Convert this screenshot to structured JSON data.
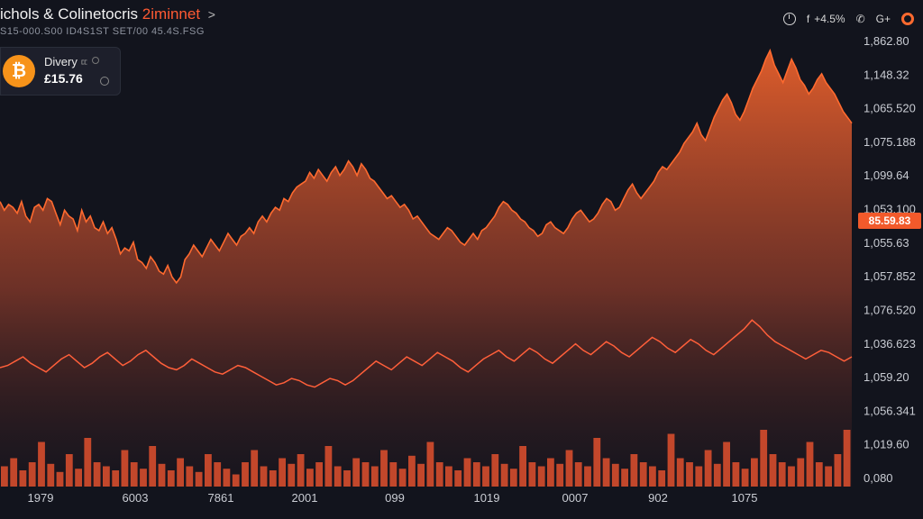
{
  "header": {
    "title_main": "ichols & Colinetocris",
    "title_accent": "2iminnet",
    "title_caret": ">",
    "subtitle": "S15-000.S00 ID4S1ST SET/00 45.4S.FSG"
  },
  "toolbar": {
    "timer_icon": "clock-icon",
    "social_icon_label": "f",
    "change": "+4.5%",
    "phone_icon_label": "✆",
    "share_icon_label": "G+",
    "record_icon": "ring-icon"
  },
  "ticker": {
    "name": "Divery",
    "name_suffix": "ㄸ",
    "price": "£15.76",
    "coin_symbol": "₿"
  },
  "colors": {
    "background": "#12141d",
    "price_line": "#ff6a2f",
    "area_top": "#e8602c",
    "area_bottom": "#2a1a22",
    "secondary_line": "#ff5f3a",
    "volume": "#e0502e",
    "badge": "#f25a2b"
  },
  "chart_data": {
    "type": "area",
    "y_axis_labels": [
      "1,862.80",
      "1,148.32",
      "1,065.520",
      "1,075.188",
      "1,099.64",
      "1,053.100",
      "1,055.63",
      "1,057.852",
      "1,076.520",
      "1,036.623",
      "1,059.20",
      "1,056.341",
      "1,019.60",
      "0,080"
    ],
    "x_axis_labels": [
      "1979",
      "6003",
      "7861",
      "2001",
      "099",
      "1019",
      "0007",
      "902",
      "1075"
    ],
    "current_price_badge": "85.59.83",
    "price_series": [
      0.73,
      0.7,
      0.72,
      0.71,
      0.69,
      0.73,
      0.68,
      0.66,
      0.71,
      0.72,
      0.7,
      0.74,
      0.73,
      0.69,
      0.65,
      0.7,
      0.68,
      0.67,
      0.63,
      0.7,
      0.66,
      0.68,
      0.64,
      0.63,
      0.66,
      0.62,
      0.64,
      0.6,
      0.55,
      0.57,
      0.56,
      0.59,
      0.53,
      0.52,
      0.5,
      0.54,
      0.52,
      0.49,
      0.48,
      0.51,
      0.47,
      0.45,
      0.47,
      0.53,
      0.55,
      0.58,
      0.56,
      0.54,
      0.57,
      0.6,
      0.58,
      0.56,
      0.59,
      0.62,
      0.6,
      0.58,
      0.61,
      0.62,
      0.64,
      0.62,
      0.66,
      0.68,
      0.66,
      0.69,
      0.71,
      0.7,
      0.74,
      0.73,
      0.76,
      0.78,
      0.79,
      0.8,
      0.83,
      0.81,
      0.84,
      0.82,
      0.8,
      0.83,
      0.85,
      0.82,
      0.84,
      0.87,
      0.85,
      0.82,
      0.86,
      0.84,
      0.81,
      0.8,
      0.78,
      0.76,
      0.74,
      0.75,
      0.73,
      0.71,
      0.72,
      0.7,
      0.67,
      0.68,
      0.66,
      0.64,
      0.62,
      0.61,
      0.6,
      0.62,
      0.64,
      0.63,
      0.61,
      0.59,
      0.58,
      0.6,
      0.62,
      0.6,
      0.63,
      0.64,
      0.66,
      0.68,
      0.71,
      0.73,
      0.72,
      0.7,
      0.69,
      0.67,
      0.66,
      0.64,
      0.63,
      0.61,
      0.62,
      0.65,
      0.66,
      0.64,
      0.63,
      0.62,
      0.64,
      0.67,
      0.69,
      0.7,
      0.68,
      0.66,
      0.67,
      0.69,
      0.72,
      0.74,
      0.73,
      0.7,
      0.71,
      0.74,
      0.77,
      0.79,
      0.76,
      0.74,
      0.76,
      0.78,
      0.8,
      0.83,
      0.85,
      0.84,
      0.86,
      0.88,
      0.9,
      0.93,
      0.95,
      0.97,
      1.0,
      0.96,
      0.94,
      0.98,
      1.02,
      1.05,
      1.08,
      1.1,
      1.07,
      1.03,
      1.01,
      1.04,
      1.08,
      1.12,
      1.15,
      1.18,
      1.22,
      1.25,
      1.2,
      1.17,
      1.14,
      1.18,
      1.22,
      1.19,
      1.15,
      1.13,
      1.1,
      1.12,
      1.15,
      1.17,
      1.14,
      1.12,
      1.1,
      1.07,
      1.04,
      1.02,
      1.0
    ],
    "momentum_series": [
      0.3,
      0.31,
      0.33,
      0.35,
      0.32,
      0.3,
      0.28,
      0.31,
      0.34,
      0.36,
      0.33,
      0.3,
      0.32,
      0.35,
      0.37,
      0.34,
      0.31,
      0.33,
      0.36,
      0.38,
      0.35,
      0.32,
      0.3,
      0.29,
      0.31,
      0.34,
      0.32,
      0.3,
      0.28,
      0.27,
      0.29,
      0.31,
      0.3,
      0.28,
      0.26,
      0.24,
      0.22,
      0.23,
      0.25,
      0.24,
      0.22,
      0.21,
      0.23,
      0.25,
      0.24,
      0.22,
      0.24,
      0.27,
      0.3,
      0.33,
      0.31,
      0.29,
      0.32,
      0.35,
      0.33,
      0.31,
      0.34,
      0.37,
      0.35,
      0.33,
      0.3,
      0.28,
      0.31,
      0.34,
      0.36,
      0.38,
      0.35,
      0.33,
      0.36,
      0.39,
      0.37,
      0.34,
      0.32,
      0.35,
      0.38,
      0.41,
      0.38,
      0.36,
      0.39,
      0.42,
      0.4,
      0.37,
      0.35,
      0.38,
      0.41,
      0.44,
      0.42,
      0.39,
      0.37,
      0.4,
      0.43,
      0.41,
      0.38,
      0.36,
      0.39,
      0.42,
      0.45,
      0.48,
      0.52,
      0.49,
      0.45,
      0.42,
      0.4,
      0.38,
      0.36,
      0.34,
      0.36,
      0.38,
      0.37,
      0.35,
      0.33,
      0.35
    ],
    "volume_series": [
      0.25,
      0.35,
      0.2,
      0.3,
      0.55,
      0.28,
      0.18,
      0.4,
      0.22,
      0.6,
      0.3,
      0.25,
      0.2,
      0.45,
      0.3,
      0.22,
      0.5,
      0.28,
      0.2,
      0.35,
      0.25,
      0.18,
      0.4,
      0.3,
      0.22,
      0.15,
      0.3,
      0.45,
      0.25,
      0.2,
      0.35,
      0.28,
      0.4,
      0.22,
      0.3,
      0.5,
      0.25,
      0.2,
      0.35,
      0.3,
      0.25,
      0.45,
      0.3,
      0.22,
      0.38,
      0.28,
      0.55,
      0.3,
      0.25,
      0.2,
      0.35,
      0.3,
      0.25,
      0.4,
      0.28,
      0.22,
      0.5,
      0.3,
      0.25,
      0.35,
      0.28,
      0.45,
      0.3,
      0.25,
      0.6,
      0.35,
      0.28,
      0.22,
      0.4,
      0.3,
      0.25,
      0.2,
      0.65,
      0.35,
      0.3,
      0.25,
      0.45,
      0.28,
      0.55,
      0.3,
      0.22,
      0.35,
      0.7,
      0.4,
      0.3,
      0.25,
      0.35,
      0.55,
      0.3,
      0.25,
      0.4,
      0.7
    ]
  }
}
